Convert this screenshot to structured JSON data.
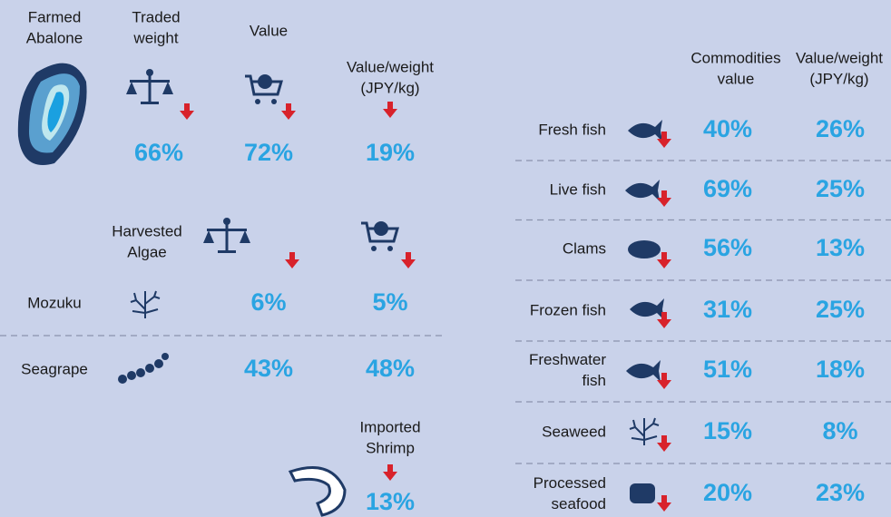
{
  "left_headers": [
    [
      "Traded",
      "weight"
    ],
    [
      "Value"
    ],
    [
      "Value/weight",
      "(JPY/kg)"
    ]
  ],
  "abalone": {
    "label": [
      "Farmed",
      "Abalone"
    ],
    "values": [
      "66%",
      "72%",
      "19%"
    ]
  },
  "algae": {
    "label": [
      "Harvested",
      "Algae"
    ],
    "rows": [
      {
        "name": "Mozuku",
        "values": [
          "6%",
          "5%"
        ]
      },
      {
        "name": "Seagrape",
        "values": [
          "43%",
          "48%"
        ]
      }
    ]
  },
  "shrimp": {
    "label": [
      "Imported",
      "Shrimp"
    ],
    "value": "13%"
  },
  "commodities": {
    "headers": [
      [
        "Commodities",
        "value"
      ],
      [
        "Value/weight",
        "(JPY/kg)"
      ]
    ],
    "rows": [
      {
        "name": [
          "Fresh fish"
        ],
        "values": [
          "40%",
          "26%"
        ]
      },
      {
        "name": [
          "Live fish"
        ],
        "values": [
          "69%",
          "25%"
        ]
      },
      {
        "name": [
          "Clams"
        ],
        "values": [
          "56%",
          "13%"
        ]
      },
      {
        "name": [
          "Frozen fish"
        ],
        "values": [
          "31%",
          "25%"
        ]
      },
      {
        "name": [
          "Freshwater",
          "fish"
        ],
        "values": [
          "51%",
          "18%"
        ]
      },
      {
        "name": [
          "Seaweed"
        ],
        "values": [
          "15%",
          "8%"
        ]
      },
      {
        "name": [
          "Processed",
          "seafood"
        ],
        "values": [
          "20%",
          "23%"
        ]
      }
    ]
  }
}
